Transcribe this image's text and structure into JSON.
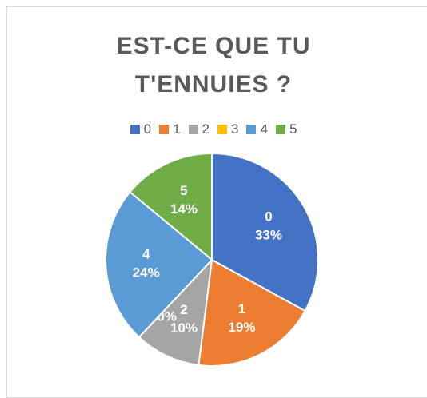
{
  "chart_data": {
    "type": "pie",
    "title": "EST-CE QUE TU T'ENNUIES ?",
    "categories": [
      "0",
      "1",
      "2",
      "3",
      "4",
      "5"
    ],
    "values": [
      33,
      19,
      10,
      0,
      24,
      14
    ],
    "value_labels": [
      "33%",
      "19%",
      "10%",
      "0%",
      "24%",
      "14%"
    ],
    "colors": [
      "#4472c4",
      "#ed7d31",
      "#a5a5a5",
      "#ffc000",
      "#5b9bd5",
      "#70ad47"
    ],
    "legend": "top"
  }
}
